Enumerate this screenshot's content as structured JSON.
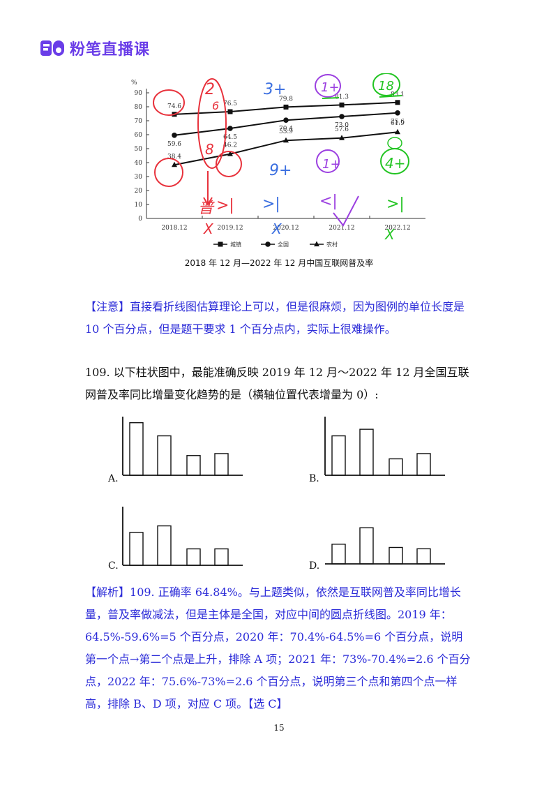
{
  "header": {
    "logo_text": "粉笔直播课",
    "brand_color": "#6a3de8"
  },
  "chart_data": {
    "type": "line",
    "title": "2018 年 12 月—2022 年 12 月中国互联网普及率",
    "ylabel": "%",
    "xlabel": "",
    "ylim": [
      0,
      90
    ],
    "yticks": [
      0,
      10,
      20,
      30,
      40,
      50,
      60,
      70,
      80,
      90
    ],
    "categories": [
      "2018.12",
      "2019.12",
      "2020.12",
      "2021.12",
      "2022.12"
    ],
    "series": [
      {
        "name": "城镇",
        "marker": "square",
        "values": [
          74.6,
          76.5,
          79.8,
          81.3,
          83.1
        ],
        "labels": [
          "74.6",
          "76.5",
          "79.8",
          "81.3",
          "83.1"
        ]
      },
      {
        "name": "全国",
        "marker": "circle",
        "values": [
          59.6,
          64.5,
          70.4,
          73.0,
          75.6
        ],
        "labels": [
          "59.6",
          "64.5",
          "70.4",
          "73.0",
          "75.6"
        ]
      },
      {
        "name": "农村",
        "marker": "triangle",
        "values": [
          38.4,
          46.2,
          55.9,
          57.6,
          61.9
        ],
        "labels": [
          "38.4",
          "46.2",
          "55.9",
          "57.6",
          "61.9"
        ]
      }
    ],
    "legend_position": "bottom",
    "grid": false,
    "annotations": {
      "red": [
        "2",
        "8",
        "6",
        "8",
        "普",
        ">",
        "|",
        "X"
      ],
      "blue": [
        "3",
        "+",
        "9",
        "+",
        ">",
        "|",
        "X"
      ],
      "purple": [
        "1",
        "+",
        "1",
        "+",
        "<",
        "|"
      ],
      "green": [
        "1",
        "8",
        "4",
        "+",
        ">",
        "|",
        "X"
      ]
    }
  },
  "note": {
    "label": "【注意】",
    "text": "直接看折线图估算理论上可以，但是很麻烦，因为图例的单位长度是 10 个百分点，但是题干要求 1 个百分点内，实际上很难操作。"
  },
  "question": {
    "text": "109. 以下柱状图中，最能准确反映 2019 年 12 月～2022 年 12 月全国互联网普及率同比增量变化趋势的是（横轴位置代表增量为 0）:"
  },
  "options": [
    {
      "label": "A.",
      "values": [
        8,
        6,
        3,
        3.3
      ]
    },
    {
      "label": "B.",
      "values": [
        6,
        7,
        2.5,
        3.3
      ]
    },
    {
      "label": "C.",
      "values": [
        5,
        6,
        2.5,
        2.5
      ]
    },
    {
      "label": "D.",
      "values": [
        3,
        5.5,
        2.5,
        2.3
      ]
    }
  ],
  "analysis": {
    "label": "【解析】",
    "text": "109. 正确率 64.84%。与上题类似，依然是互联网普及率同比增长量，普及率做减法，但是主体是全国，对应中间的圆点折线图。2019 年：64.5%-59.6%=5 个百分点，2020 年：70.4%-64.5%=6 个百分点，说明第一个点→第二个点是上升，排除 A 项；2021 年：73%-70.4%=2.6 个百分点，2022 年：75.6%-73%=2.6 个百分点，说明第三个点和第四个点一样高，排除 B、D 项，对应 C 项。",
    "answer": "【选 C】"
  },
  "footer": {
    "page_number": "15"
  }
}
